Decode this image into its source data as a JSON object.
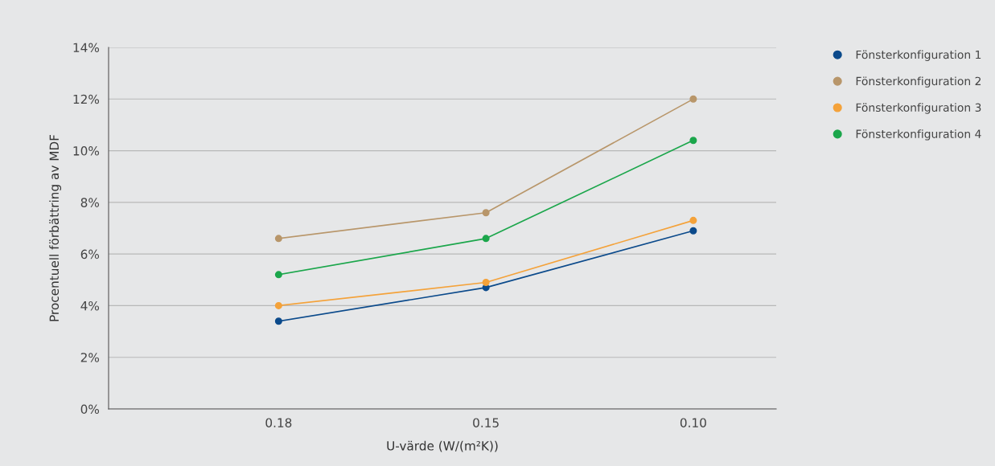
{
  "chart_data": {
    "type": "line",
    "xlabel": "U-värde (W/(m²K))",
    "ylabel": "Procentuell förbättring av MDF",
    "categories": [
      "0.18",
      "0.15",
      "0.10"
    ],
    "series": [
      {
        "name": "Fönsterkonfiguration 1",
        "color": "#0b4a8b",
        "values": [
          3.4,
          4.7,
          6.9
        ]
      },
      {
        "name": "Fönsterkonfiguration 2",
        "color": "#b8966a",
        "values": [
          6.6,
          7.6,
          12.0
        ]
      },
      {
        "name": "Fönsterkonfiguration 3",
        "color": "#f4a23a",
        "values": [
          4.0,
          4.9,
          7.3
        ]
      },
      {
        "name": "Fönsterkonfiguration 4",
        "color": "#1ba64b",
        "values": [
          5.2,
          6.6,
          10.4
        ]
      }
    ],
    "ylim": [
      0,
      14
    ],
    "yticks": [
      {
        "value": 0,
        "label": "0%"
      },
      {
        "value": 2,
        "label": "2%"
      },
      {
        "value": 4,
        "label": "4%"
      },
      {
        "value": 6,
        "label": "6%"
      },
      {
        "value": 8,
        "label": "8%"
      },
      {
        "value": 10,
        "label": "10%"
      },
      {
        "value": 12,
        "label": "12%"
      },
      {
        "value": 14,
        "label": "14%"
      }
    ],
    "grid": "y",
    "legend": "top right",
    "marker": "circle",
    "line_style": "solid"
  }
}
